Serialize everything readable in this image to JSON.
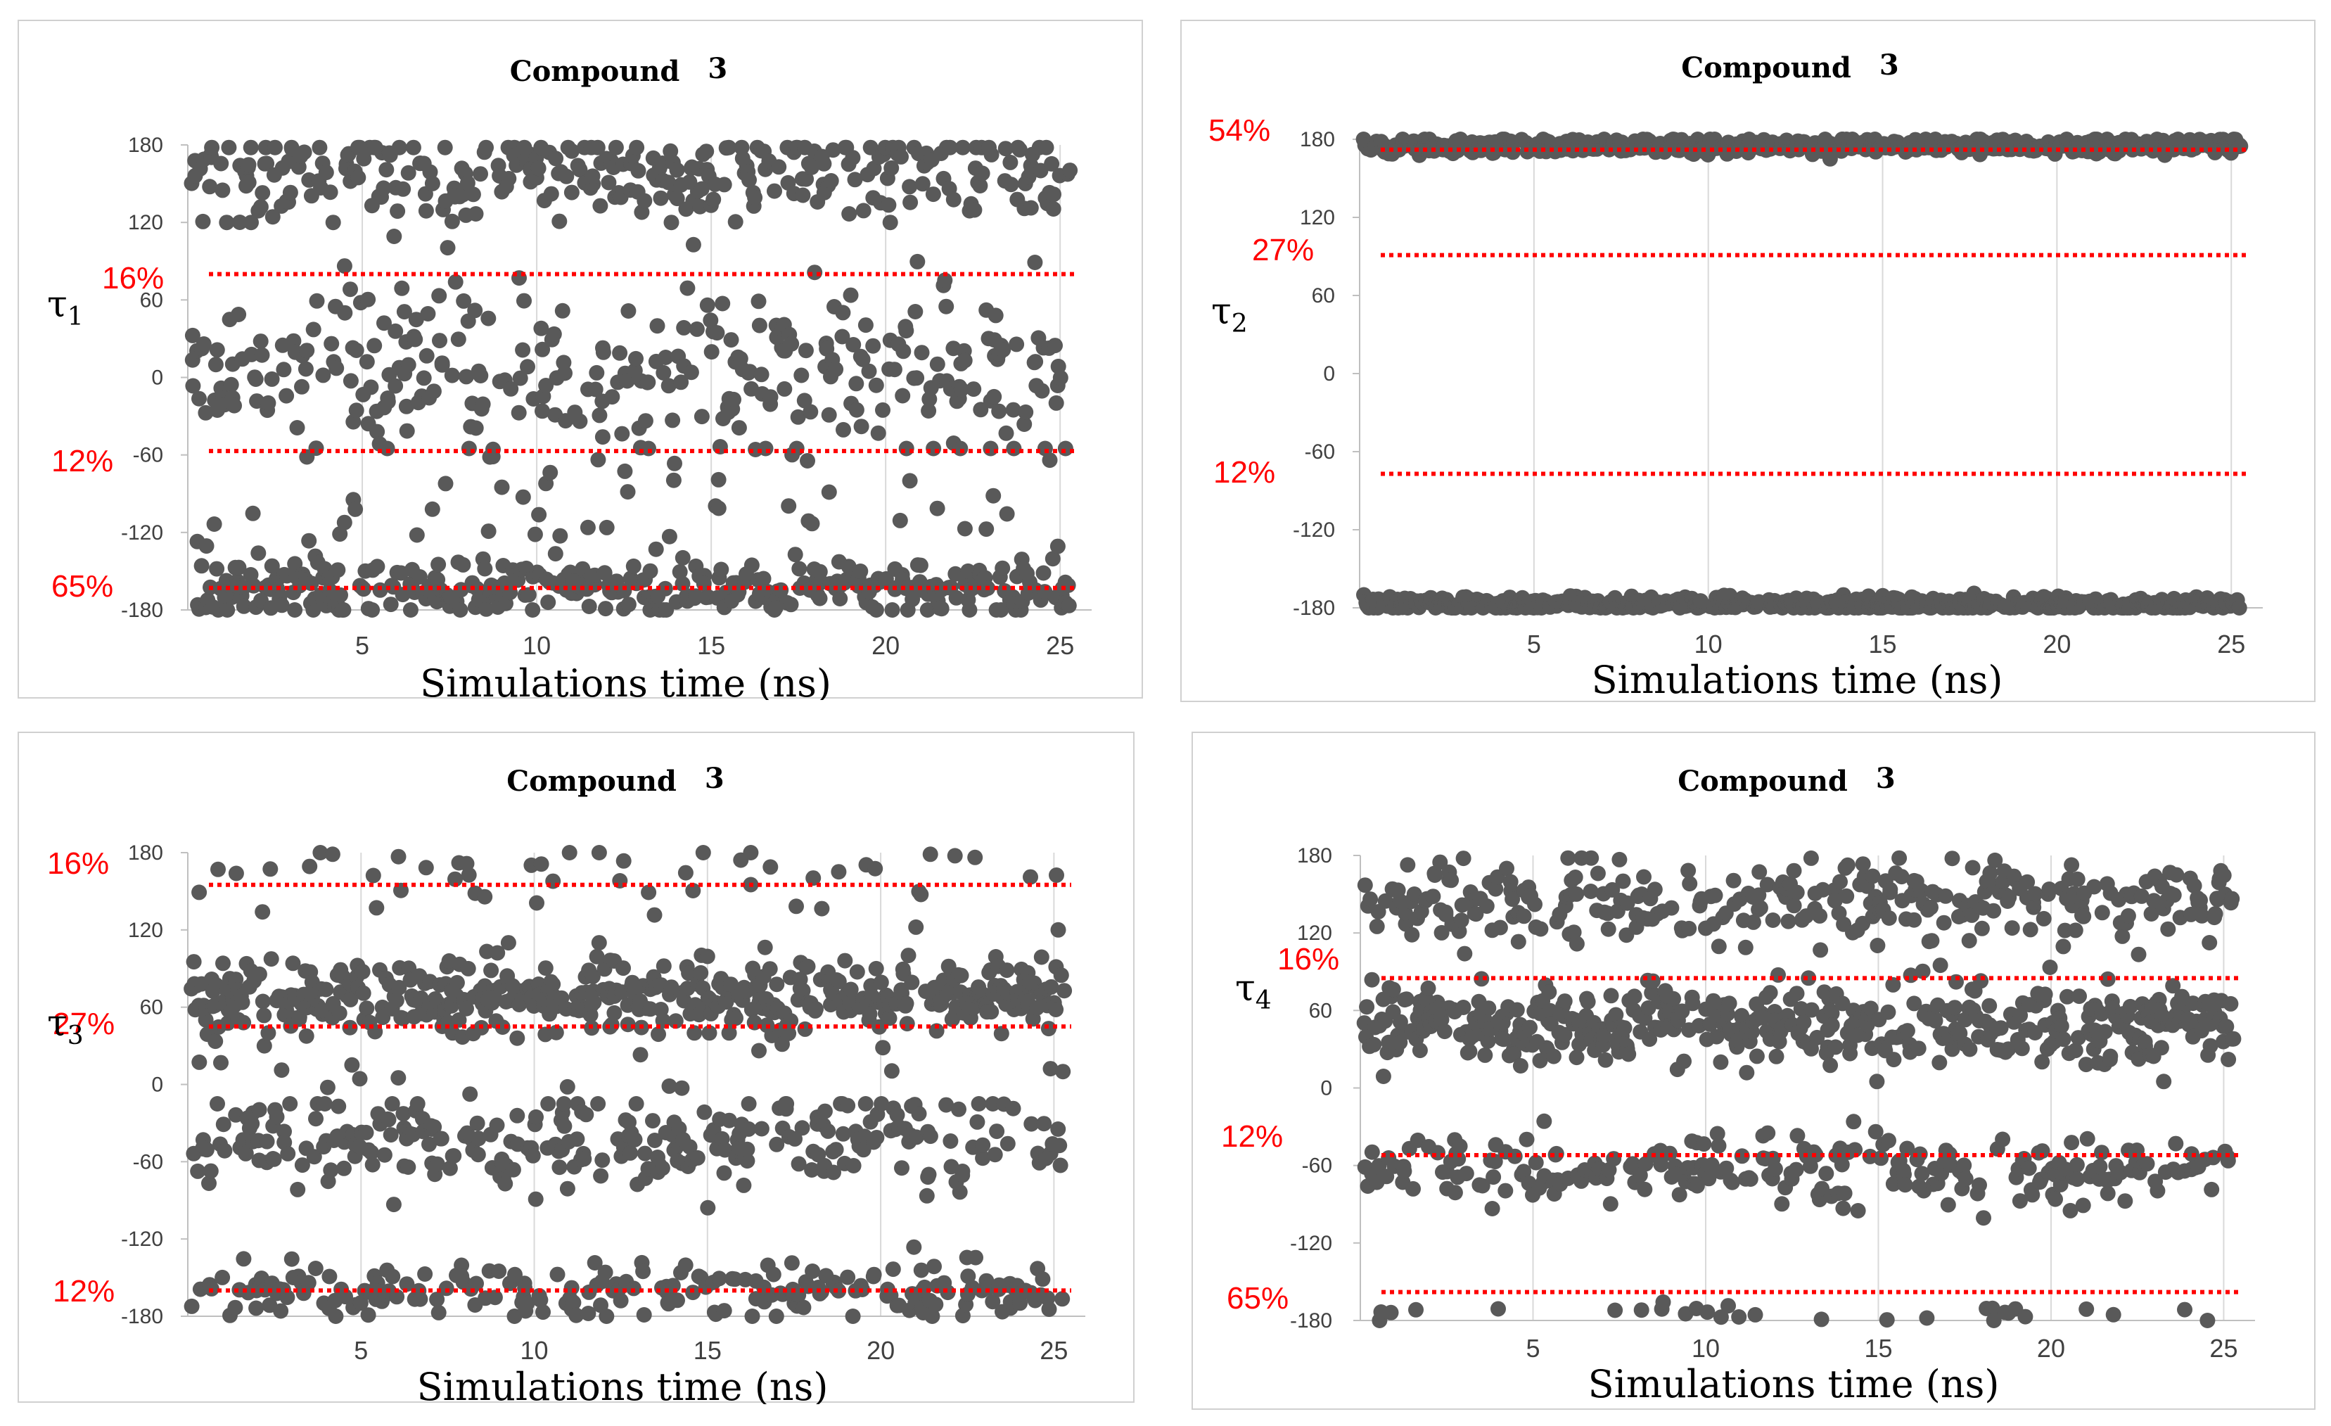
{
  "colors": {
    "point": "#595959",
    "reference_line": "#ff0000",
    "grid": "#d9d9d9",
    "axis": "#bfbfbf",
    "tick_text": "#404040",
    "label_text": "#000000"
  },
  "chart_data": [
    {
      "id": "tau1",
      "type": "scatter",
      "title": "Compound",
      "title_number": "3",
      "xlabel": "Simulations time (ns)",
      "ylabel": "τ",
      "ylabel_sub": "1",
      "xlim": [
        0,
        25.5
      ],
      "ylim": [
        -180,
        180
      ],
      "xticks": [
        5,
        10,
        15,
        20,
        25
      ],
      "yticks": [
        180,
        120,
        60,
        0,
        -60,
        -120,
        -180
      ],
      "grid": "vertical",
      "thresholds": [
        {
          "value": 80,
          "label": "16%"
        },
        {
          "value": -57,
          "label": "12%"
        },
        {
          "value": -163,
          "label": "65%"
        }
      ],
      "clusters": [
        {
          "center": 158,
          "spread": 18,
          "fraction": 0.29,
          "min": 120,
          "max": 178
        },
        {
          "center": 5,
          "spread": 35,
          "fraction": 0.3,
          "min": -80,
          "max": 110
        },
        {
          "center": -110,
          "spread": 40,
          "fraction": 0.08,
          "min": -178,
          "max": -55
        },
        {
          "center": -163,
          "spread": 11,
          "fraction": 0.33,
          "min": -180,
          "max": -130
        }
      ]
    },
    {
      "id": "tau2",
      "type": "scatter",
      "title": "Compound",
      "title_number": "3",
      "xlabel": "Simulations time (ns)",
      "ylabel": "τ",
      "ylabel_sub": "2",
      "xlim": [
        0,
        25.5
      ],
      "ylim": [
        -180,
        180
      ],
      "xticks": [
        5,
        10,
        15,
        20,
        25
      ],
      "yticks": [
        180,
        120,
        60,
        0,
        -60,
        -120,
        -180
      ],
      "grid": "vertical",
      "thresholds": [
        {
          "value": 172,
          "label": "54%"
        },
        {
          "value": 91,
          "label": "27%"
        },
        {
          "value": -77,
          "label": "12%"
        }
      ],
      "clusters": [
        {
          "center": 175,
          "spread": 3,
          "fraction": 0.5,
          "min": 165,
          "max": 180
        },
        {
          "center": -177,
          "spread": 3,
          "fraction": 0.5,
          "min": -180,
          "max": -167
        }
      ]
    },
    {
      "id": "tau3",
      "type": "scatter",
      "title": "Compound",
      "title_number": "3",
      "xlabel": "Simulations time (ns)",
      "ylabel": "τ",
      "ylabel_sub": "3",
      "xlim": [
        0,
        25.5
      ],
      "ylim": [
        -180,
        180
      ],
      "xticks": [
        5,
        10,
        15,
        20,
        25
      ],
      "yticks": [
        180,
        120,
        60,
        0,
        -60,
        -120,
        -180
      ],
      "grid": "vertical",
      "thresholds": [
        {
          "value": 155,
          "label": "16%"
        },
        {
          "value": 45,
          "label": "27%"
        },
        {
          "value": -160,
          "label": "12%"
        }
      ],
      "clusters": [
        {
          "center": 68,
          "spread": 14,
          "fraction": 0.44,
          "min": 30,
          "max": 110
        },
        {
          "center": 160,
          "spread": 15,
          "fraction": 0.05,
          "min": 120,
          "max": 180
        },
        {
          "center": -45,
          "spread": 18,
          "fraction": 0.28,
          "min": -110,
          "max": -15
        },
        {
          "center": -160,
          "spread": 12,
          "fraction": 0.2,
          "min": -180,
          "max": -125
        },
        {
          "center": 15,
          "spread": 30,
          "fraction": 0.03,
          "min": -15,
          "max": 40
        }
      ]
    },
    {
      "id": "tau4",
      "type": "scatter",
      "title": "Compound",
      "title_number": "3",
      "xlabel": "Simulations time (ns)",
      "ylabel": "τ",
      "ylabel_sub": "4",
      "xlim": [
        0,
        25.5
      ],
      "ylim": [
        -180,
        180
      ],
      "xticks": [
        5,
        10,
        15,
        20,
        25
      ],
      "yticks": [
        180,
        120,
        60,
        0,
        -60,
        -120,
        -180
      ],
      "grid": "vertical",
      "thresholds": [
        {
          "value": 85,
          "label": "16%"
        },
        {
          "value": -52,
          "label": "12%"
        },
        {
          "value": -158,
          "label": "65%"
        }
      ],
      "clusters": [
        {
          "center": 145,
          "spread": 17,
          "fraction": 0.28,
          "min": 100,
          "max": 178
        },
        {
          "center": 50,
          "spread": 16,
          "fraction": 0.46,
          "min": 5,
          "max": 95
        },
        {
          "center": -63,
          "spread": 14,
          "fraction": 0.22,
          "min": -110,
          "max": -5
        },
        {
          "center": -175,
          "spread": 4,
          "fraction": 0.04,
          "min": -180,
          "max": -165
        }
      ]
    }
  ]
}
